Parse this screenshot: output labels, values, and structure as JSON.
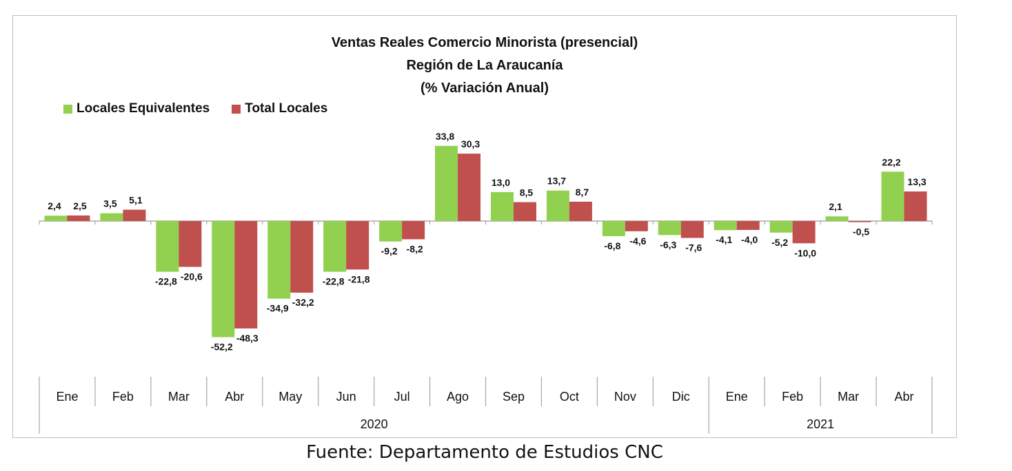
{
  "title": {
    "line1": "Ventas Reales Comercio Minorista (presencial)",
    "line2": "Región de La Araucanía",
    "line3": "(% Variación Anual)"
  },
  "legend": {
    "items": [
      {
        "label": "Locales Equivalentes",
        "color": "#92d050"
      },
      {
        "label": "Total Locales",
        "color": "#c0504d"
      }
    ]
  },
  "source": "Fuente: Departamento de Estudios CNC",
  "chart_data": {
    "type": "bar",
    "categories": [
      "Ene",
      "Feb",
      "Mar",
      "Abr",
      "May",
      "Jun",
      "Jul",
      "Ago",
      "Sep",
      "Oct",
      "Nov",
      "Dic",
      "Ene",
      "Feb",
      "Mar",
      "Abr"
    ],
    "years": [
      {
        "label": "2020",
        "start": 0,
        "end": 11
      },
      {
        "label": "2021",
        "start": 12,
        "end": 15
      }
    ],
    "series": [
      {
        "name": "Locales Equivalentes",
        "color": "#92d050",
        "values": [
          2.4,
          3.5,
          -22.8,
          -52.2,
          -34.9,
          -22.8,
          -9.2,
          33.8,
          13.0,
          13.7,
          -6.8,
          -6.3,
          -4.1,
          -5.2,
          2.1,
          22.2
        ],
        "labels": [
          "2,4",
          "3,5",
          "-22,8",
          "-52,2",
          "-34,9",
          "-22,8",
          "-9,2",
          "33,8",
          "13,0",
          "13,7",
          "-6,8",
          "-6,3",
          "-4,1",
          "-5,2",
          "2,1",
          "22,2"
        ]
      },
      {
        "name": "Total Locales",
        "color": "#c0504d",
        "values": [
          2.5,
          5.1,
          -20.6,
          -48.3,
          -32.2,
          -21.8,
          -8.2,
          30.3,
          8.5,
          8.7,
          -4.6,
          -7.6,
          -4.0,
          -10.0,
          -0.5,
          13.3
        ],
        "labels": [
          "2,5",
          "5,1",
          "-20,6",
          "-48,3",
          "-32,2",
          "-21,8",
          "-8,2",
          "30,3",
          "8,5",
          "8,7",
          "-4,6",
          "-7,6",
          "-4,0",
          "-10,0",
          "-0,5",
          "13,3"
        ]
      }
    ],
    "ylim": [
      -55,
      40
    ],
    "grid": false,
    "legend_position": "top-left"
  }
}
